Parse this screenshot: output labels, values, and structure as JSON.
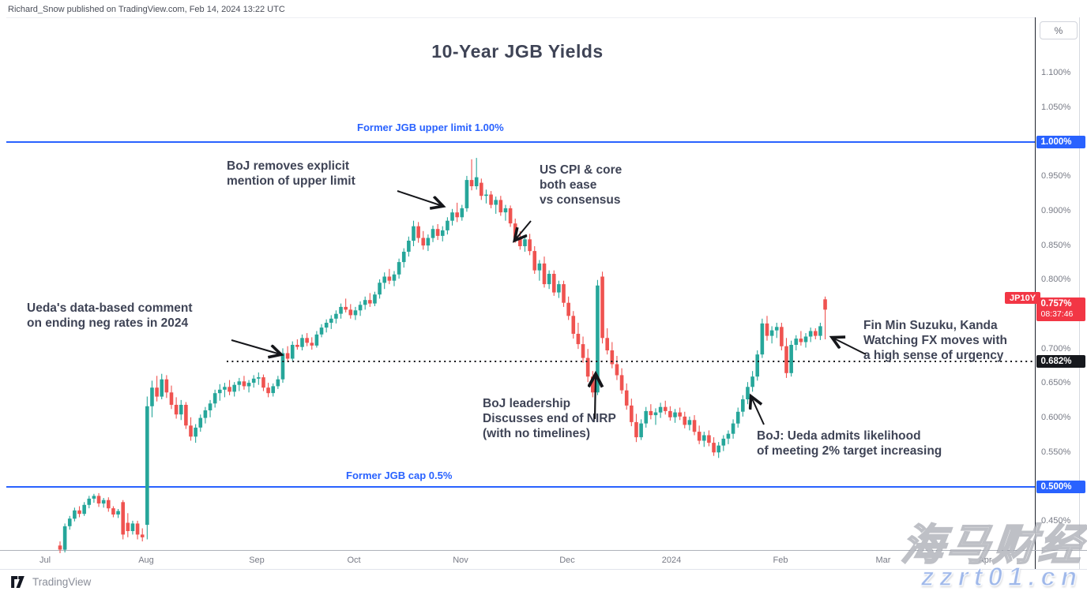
{
  "attribution": "Richard_Snow published on TradingView.com, Feb 14, 2024 13:22 UTC",
  "title": "10-Year JGB Yields",
  "levels": {
    "upper_label": "Former JGB upper limit 1.00%",
    "cap_label": "Former JGB cap 0.5%"
  },
  "annotations": [
    {
      "lines": [
        "BoJ removes explicit",
        "mention of upper limit"
      ]
    },
    {
      "lines": [
        "US CPI & core",
        "both ease",
        "vs consensus"
      ]
    },
    {
      "lines": [
        "Ueda's data-based comment",
        "on ending neg rates in 2024"
      ]
    },
    {
      "lines": [
        "BoJ leadership",
        "Discusses end of NIRP",
        "(with no timelines)"
      ]
    },
    {
      "lines": [
        "BoJ: Ueda admits likelihood",
        "of meeting 2% target increasing"
      ]
    },
    {
      "lines": [
        "Fin Min Suzuku, Kanda",
        "Watching FX moves with",
        "a high sense of urgency"
      ]
    }
  ],
  "price_axis": {
    "unit": "%",
    "symbol_label": "JP10Y",
    "badges": {
      "upper": "1.000%",
      "cap": "0.500%",
      "dotted": "0.682%",
      "last": "0.757%",
      "countdown": "08:37:46"
    }
  },
  "time_axis": {
    "labels": [
      "Jul",
      "Aug",
      "Sep",
      "Oct",
      "Nov",
      "Dec",
      "2024",
      "Feb",
      "Mar",
      "Apr"
    ]
  },
  "footer": {
    "brand": "TradingView"
  },
  "watermark": {
    "cn": "海马财经",
    "site": "zzrt01.cn"
  },
  "chart_data": {
    "type": "candlestick",
    "title": "10-Year JGB Yields",
    "symbol": "JP10Y",
    "unit": "percent_yield",
    "last_price": 0.757,
    "countdown": "08:37:46",
    "key_levels": {
      "former_upper_limit": 1.0,
      "former_cap": 0.5,
      "dotted_reference": 0.682
    },
    "y_visible_range": [
      0.4028,
      1.1808
    ],
    "y_ticks_plain": [
      1.1,
      1.05,
      0.95,
      0.9,
      0.85,
      0.8,
      0.7,
      0.65,
      0.6,
      0.55,
      0.45
    ],
    "x_labels": [
      "Jul",
      "Aug",
      "Sep",
      "Oct",
      "Nov",
      "Dec",
      "2024",
      "Feb",
      "Mar",
      "Apr"
    ],
    "colors": {
      "up": "#26a69a",
      "down": "#ef5350",
      "line_blue": "#2962ff",
      "badge_red": "#f23645"
    },
    "grid": false,
    "candles": [
      [
        0.415,
        0.421,
        0.404,
        0.409
      ],
      [
        0.409,
        0.447,
        0.405,
        0.443
      ],
      [
        0.443,
        0.458,
        0.438,
        0.454
      ],
      [
        0.454,
        0.47,
        0.45,
        0.466
      ],
      [
        0.466,
        0.472,
        0.456,
        0.461
      ],
      [
        0.461,
        0.478,
        0.458,
        0.474
      ],
      [
        0.474,
        0.487,
        0.469,
        0.483
      ],
      [
        0.483,
        0.49,
        0.477,
        0.487
      ],
      [
        0.487,
        0.491,
        0.471,
        0.476
      ],
      [
        0.476,
        0.484,
        0.47,
        0.481
      ],
      [
        0.481,
        0.485,
        0.464,
        0.469
      ],
      [
        0.469,
        0.472,
        0.456,
        0.46
      ],
      [
        0.46,
        0.468,
        0.455,
        0.465
      ],
      [
        0.478,
        0.481,
        0.424,
        0.431
      ],
      [
        0.448,
        0.462,
        0.427,
        0.436
      ],
      [
        0.436,
        0.451,
        0.431,
        0.447
      ],
      [
        0.447,
        0.451,
        0.424,
        0.431
      ],
      [
        0.431,
        0.44,
        0.421,
        0.427
      ],
      [
        0.445,
        0.631,
        0.424,
        0.617
      ],
      [
        0.617,
        0.654,
        0.601,
        0.644
      ],
      [
        0.644,
        0.661,
        0.624,
        0.631
      ],
      [
        0.631,
        0.664,
        0.627,
        0.656
      ],
      [
        0.656,
        0.662,
        0.629,
        0.637
      ],
      [
        0.637,
        0.647,
        0.613,
        0.619
      ],
      [
        0.619,
        0.63,
        0.599,
        0.605
      ],
      [
        0.605,
        0.626,
        0.597,
        0.619
      ],
      [
        0.619,
        0.623,
        0.584,
        0.589
      ],
      [
        0.589,
        0.601,
        0.567,
        0.573
      ],
      [
        0.573,
        0.591,
        0.564,
        0.586
      ],
      [
        0.586,
        0.605,
        0.58,
        0.6
      ],
      [
        0.6,
        0.616,
        0.592,
        0.611
      ],
      [
        0.611,
        0.626,
        0.601,
        0.621
      ],
      [
        0.621,
        0.641,
        0.615,
        0.636
      ],
      [
        0.636,
        0.649,
        0.625,
        0.641
      ],
      [
        0.641,
        0.651,
        0.63,
        0.645
      ],
      [
        0.645,
        0.655,
        0.633,
        0.638
      ],
      [
        0.638,
        0.652,
        0.631,
        0.648
      ],
      [
        0.648,
        0.658,
        0.639,
        0.653
      ],
      [
        0.653,
        0.661,
        0.641,
        0.646
      ],
      [
        0.646,
        0.655,
        0.637,
        0.651
      ],
      [
        0.651,
        0.662,
        0.644,
        0.657
      ],
      [
        0.657,
        0.666,
        0.648,
        0.659
      ],
      [
        0.659,
        0.663,
        0.639,
        0.644
      ],
      [
        0.644,
        0.651,
        0.63,
        0.636
      ],
      [
        0.636,
        0.65,
        0.631,
        0.646
      ],
      [
        0.646,
        0.661,
        0.642,
        0.656
      ],
      [
        0.656,
        0.701,
        0.651,
        0.694
      ],
      [
        0.694,
        0.704,
        0.681,
        0.686
      ],
      [
        0.686,
        0.711,
        0.683,
        0.706
      ],
      [
        0.706,
        0.714,
        0.699,
        0.703
      ],
      [
        0.703,
        0.721,
        0.698,
        0.716
      ],
      [
        0.716,
        0.723,
        0.704,
        0.709
      ],
      [
        0.709,
        0.717,
        0.699,
        0.705
      ],
      [
        0.705,
        0.726,
        0.702,
        0.721
      ],
      [
        0.721,
        0.736,
        0.717,
        0.731
      ],
      [
        0.731,
        0.743,
        0.724,
        0.738
      ],
      [
        0.738,
        0.749,
        0.729,
        0.744
      ],
      [
        0.744,
        0.756,
        0.737,
        0.751
      ],
      [
        0.751,
        0.766,
        0.744,
        0.761
      ],
      [
        0.761,
        0.773,
        0.753,
        0.757
      ],
      [
        0.757,
        0.765,
        0.744,
        0.749
      ],
      [
        0.749,
        0.761,
        0.742,
        0.756
      ],
      [
        0.756,
        0.769,
        0.748,
        0.764
      ],
      [
        0.764,
        0.776,
        0.757,
        0.771
      ],
      [
        0.771,
        0.781,
        0.761,
        0.766
      ],
      [
        0.766,
        0.783,
        0.762,
        0.779
      ],
      [
        0.779,
        0.801,
        0.773,
        0.796
      ],
      [
        0.796,
        0.811,
        0.787,
        0.805
      ],
      [
        0.805,
        0.816,
        0.794,
        0.799
      ],
      [
        0.799,
        0.813,
        0.791,
        0.808
      ],
      [
        0.808,
        0.831,
        0.802,
        0.826
      ],
      [
        0.826,
        0.846,
        0.818,
        0.841
      ],
      [
        0.841,
        0.863,
        0.834,
        0.857
      ],
      [
        0.857,
        0.886,
        0.849,
        0.878
      ],
      [
        0.878,
        0.884,
        0.854,
        0.861
      ],
      [
        0.861,
        0.871,
        0.844,
        0.85
      ],
      [
        0.85,
        0.866,
        0.842,
        0.861
      ],
      [
        0.861,
        0.879,
        0.855,
        0.874
      ],
      [
        0.874,
        0.881,
        0.858,
        0.864
      ],
      [
        0.864,
        0.878,
        0.856,
        0.872
      ],
      [
        0.872,
        0.891,
        0.866,
        0.886
      ],
      [
        0.886,
        0.903,
        0.879,
        0.898
      ],
      [
        0.898,
        0.912,
        0.884,
        0.891
      ],
      [
        0.891,
        0.909,
        0.886,
        0.904
      ],
      [
        0.904,
        0.951,
        0.899,
        0.945
      ],
      [
        0.945,
        0.975,
        0.93,
        0.936
      ],
      [
        0.936,
        0.977,
        0.931,
        0.949
      ],
      [
        0.941,
        0.947,
        0.916,
        0.922
      ],
      [
        0.922,
        0.931,
        0.911,
        0.924
      ],
      [
        0.924,
        0.929,
        0.904,
        0.909
      ],
      [
        0.909,
        0.921,
        0.896,
        0.916
      ],
      [
        0.916,
        0.922,
        0.893,
        0.898
      ],
      [
        0.898,
        0.909,
        0.886,
        0.904
      ],
      [
        0.904,
        0.908,
        0.877,
        0.882
      ],
      [
        0.882,
        0.889,
        0.854,
        0.861
      ],
      [
        0.861,
        0.871,
        0.844,
        0.849
      ],
      [
        0.849,
        0.864,
        0.841,
        0.859
      ],
      [
        0.859,
        0.867,
        0.836,
        0.842
      ],
      [
        0.842,
        0.849,
        0.809,
        0.814
      ],
      [
        0.814,
        0.829,
        0.799,
        0.824
      ],
      [
        0.824,
        0.834,
        0.789,
        0.794
      ],
      [
        0.794,
        0.814,
        0.787,
        0.809
      ],
      [
        0.809,
        0.814,
        0.777,
        0.782
      ],
      [
        0.782,
        0.799,
        0.774,
        0.794
      ],
      [
        0.794,
        0.799,
        0.761,
        0.767
      ],
      [
        0.767,
        0.776,
        0.742,
        0.748
      ],
      [
        0.748,
        0.755,
        0.715,
        0.722
      ],
      [
        0.722,
        0.738,
        0.7,
        0.707
      ],
      [
        0.707,
        0.718,
        0.68,
        0.687
      ],
      [
        0.687,
        0.7,
        0.652,
        0.66
      ],
      [
        0.66,
        0.668,
        0.63,
        0.637
      ],
      [
        0.637,
        0.8,
        0.633,
        0.792
      ],
      [
        0.805,
        0.812,
        0.708,
        0.716
      ],
      [
        0.716,
        0.73,
        0.692,
        0.698
      ],
      [
        0.698,
        0.71,
        0.672,
        0.678
      ],
      [
        0.678,
        0.69,
        0.655,
        0.662
      ],
      [
        0.662,
        0.672,
        0.635,
        0.64
      ],
      [
        0.64,
        0.65,
        0.612,
        0.618
      ],
      [
        0.618,
        0.628,
        0.588,
        0.594
      ],
      [
        0.594,
        0.606,
        0.565,
        0.572
      ],
      [
        0.572,
        0.598,
        0.568,
        0.592
      ],
      [
        0.592,
        0.616,
        0.586,
        0.61
      ],
      [
        0.61,
        0.62,
        0.598,
        0.604
      ],
      [
        0.604,
        0.614,
        0.59,
        0.608
      ],
      [
        0.608,
        0.622,
        0.6,
        0.616
      ],
      [
        0.616,
        0.625,
        0.605,
        0.61
      ],
      [
        0.61,
        0.617,
        0.596,
        0.601
      ],
      [
        0.601,
        0.613,
        0.593,
        0.608
      ],
      [
        0.608,
        0.615,
        0.597,
        0.602
      ],
      [
        0.602,
        0.609,
        0.585,
        0.59
      ],
      [
        0.59,
        0.602,
        0.582,
        0.597
      ],
      [
        0.597,
        0.604,
        0.575,
        0.58
      ],
      [
        0.58,
        0.589,
        0.562,
        0.567
      ],
      [
        0.567,
        0.58,
        0.558,
        0.575
      ],
      [
        0.575,
        0.582,
        0.559,
        0.564
      ],
      [
        0.564,
        0.572,
        0.545,
        0.55
      ],
      [
        0.55,
        0.565,
        0.542,
        0.56
      ],
      [
        0.56,
        0.575,
        0.552,
        0.57
      ],
      [
        0.57,
        0.582,
        0.562,
        0.577
      ],
      [
        0.577,
        0.598,
        0.57,
        0.592
      ],
      [
        0.592,
        0.615,
        0.586,
        0.609
      ],
      [
        0.609,
        0.633,
        0.602,
        0.627
      ],
      [
        0.627,
        0.652,
        0.62,
        0.645
      ],
      [
        0.645,
        0.668,
        0.638,
        0.66
      ],
      [
        0.66,
        0.698,
        0.654,
        0.692
      ],
      [
        0.692,
        0.744,
        0.687,
        0.737
      ],
      [
        0.737,
        0.748,
        0.712,
        0.719
      ],
      [
        0.719,
        0.733,
        0.708,
        0.727
      ],
      [
        0.727,
        0.738,
        0.716,
        0.732
      ],
      [
        0.732,
        0.738,
        0.698,
        0.704
      ],
      [
        0.704,
        0.716,
        0.658,
        0.665
      ],
      [
        0.665,
        0.712,
        0.66,
        0.706
      ],
      [
        0.706,
        0.72,
        0.698,
        0.715
      ],
      [
        0.715,
        0.726,
        0.705,
        0.71
      ],
      [
        0.71,
        0.723,
        0.702,
        0.718
      ],
      [
        0.718,
        0.731,
        0.71,
        0.726
      ],
      [
        0.726,
        0.73,
        0.714,
        0.719
      ],
      [
        0.719,
        0.738,
        0.713,
        0.733
      ],
      [
        0.772,
        0.776,
        0.714,
        0.757
      ]
    ]
  }
}
